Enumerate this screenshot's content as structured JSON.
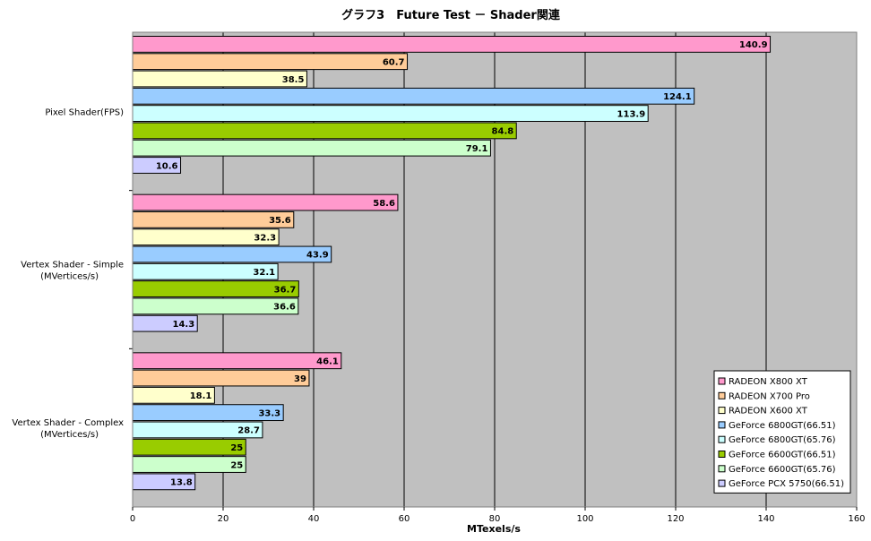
{
  "chart_data": {
    "type": "bar",
    "orientation": "horizontal",
    "title": "グラフ3　Future Test － Shader関連",
    "xlabel": "MTexels/s",
    "ylabel": "",
    "xlim": [
      0,
      160
    ],
    "x_ticks": [
      "0",
      "20",
      "40",
      "60",
      "80",
      "100",
      "120",
      "140",
      "160"
    ],
    "grid": "vertical",
    "legend_position": "bottom-right",
    "categories": [
      {
        "lines": [
          "Pixel Shader(FPS)"
        ]
      },
      {
        "lines": [
          "Vertex Shader - Simple",
          "(MVertices/s)"
        ]
      },
      {
        "lines": [
          "Vertex Shader - Complex",
          "(MVertices/s)"
        ]
      }
    ],
    "series": [
      {
        "name": "RADEON X800 XT",
        "color": "#ff99cc",
        "values": [
          140.9,
          58.6,
          46.1
        ],
        "labels": [
          "140.9",
          "58.6",
          "46.1"
        ]
      },
      {
        "name": "RADEON X700 Pro",
        "color": "#ffcc99",
        "values": [
          60.7,
          35.6,
          39
        ],
        "labels": [
          "60.7",
          "35.6",
          "39"
        ]
      },
      {
        "name": "RADEON X600 XT",
        "color": "#ffffcc",
        "values": [
          38.5,
          32.3,
          18.1
        ],
        "labels": [
          "38.5",
          "32.3",
          "18.1"
        ]
      },
      {
        "name": "GeForce 6800GT(66.51)",
        "color": "#99ccff",
        "values": [
          124.1,
          43.9,
          33.3
        ],
        "labels": [
          "124.1",
          "43.9",
          "33.3"
        ]
      },
      {
        "name": "GeForce 6800GT(65.76)",
        "color": "#ccffff",
        "values": [
          113.9,
          32.1,
          28.7
        ],
        "labels": [
          "113.9",
          "32.1",
          "28.7"
        ]
      },
      {
        "name": "GeForce 6600GT(66.51)",
        "color": "#99cc00",
        "values": [
          84.8,
          36.7,
          25
        ],
        "labels": [
          "84.8",
          "36.7",
          "25"
        ]
      },
      {
        "name": "GeForce 6600GT(65.76)",
        "color": "#ccffcc",
        "values": [
          79.1,
          36.6,
          25
        ],
        "labels": [
          "79.1",
          "36.6",
          "25"
        ]
      },
      {
        "name": "GeForce PCX 5750(66.51)",
        "color": "#ccccff",
        "values": [
          10.6,
          14.3,
          13.8
        ],
        "labels": [
          "10.6",
          "14.3",
          "13.8"
        ]
      }
    ],
    "plot_background": "#c0c0c0"
  }
}
